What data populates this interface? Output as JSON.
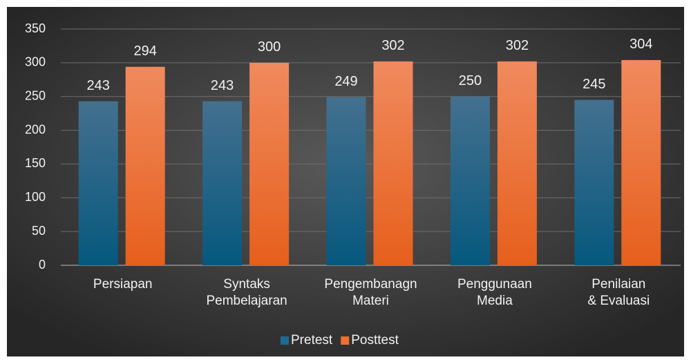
{
  "chart_data": {
    "type": "bar",
    "categories": [
      "Persiapan",
      "Syntaks Pembelajaran",
      "Pengembanagn Materi",
      "Penggunaan Media",
      "Penilaian & Evaluasi"
    ],
    "series": [
      {
        "name": "Pretest",
        "color": "#1d6a92",
        "values": [
          243,
          243,
          249,
          250,
          245
        ]
      },
      {
        "name": "Posttest",
        "color": "#ee6f2e",
        "values": [
          294,
          300,
          302,
          302,
          304
        ]
      }
    ],
    "ylim": [
      0,
      350
    ],
    "yticks": [
      0,
      50,
      100,
      150,
      200,
      250,
      300,
      350
    ],
    "grid": true,
    "legend": "bottom"
  }
}
